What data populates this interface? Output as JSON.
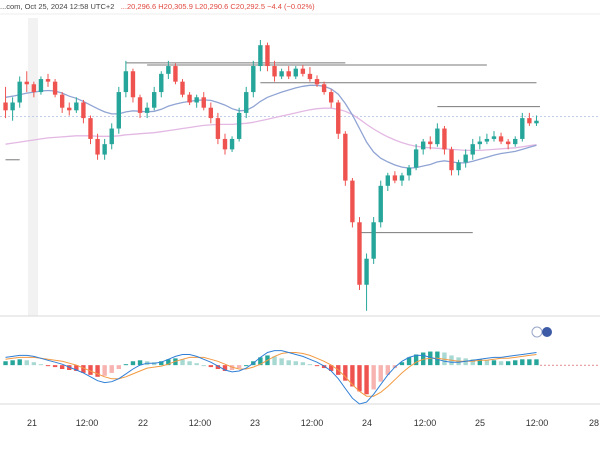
{
  "header": {
    "source": "...com, Oct 25, 2024 12:58 UTC+2",
    "ohlc": "...20,296.6  H20,305.9  L20,290.6  C20,292.5  −4.4 (−0.02%)"
  },
  "colors": {
    "up": "#26a69a",
    "down": "#ef5350",
    "ma_fast": "#90a4d4",
    "ma_slow": "#e3b8e3",
    "macd_line": "#2f7fd6",
    "signal_line": "#f39b43",
    "hist_up": "#26a69a",
    "hist_down": "#ef5350",
    "hist_up_light": "#a7d8d2",
    "hist_down_light": "#f6b3b0"
  },
  "x_axis": {
    "labels": [
      "21",
      "12:00",
      "22",
      "12:00",
      "23",
      "12:00",
      "24",
      "12:00",
      "25",
      "12:00",
      "28"
    ]
  },
  "chart_data": [
    {
      "type": "candlestick",
      "title": "",
      "xlabel": "",
      "ylabel": "",
      "ylim": [
        20000,
        20530
      ],
      "grid": false,
      "candles": [
        [
          20410,
          20440,
          20380,
          20395
        ],
        [
          20395,
          20420,
          20375,
          20410
        ],
        [
          20410,
          20460,
          20400,
          20450
        ],
        [
          20450,
          20470,
          20430,
          20445
        ],
        [
          20445,
          20450,
          20420,
          20430
        ],
        [
          20430,
          20460,
          20425,
          20455
        ],
        [
          20455,
          20465,
          20440,
          20450
        ],
        [
          20450,
          20455,
          20420,
          20425
        ],
        [
          20425,
          20430,
          20390,
          20400
        ],
        [
          20400,
          20410,
          20385,
          20395
        ],
        [
          20395,
          20420,
          20390,
          20410
        ],
        [
          20410,
          20415,
          20370,
          20380
        ],
        [
          20380,
          20385,
          20330,
          20340
        ],
        [
          20340,
          20350,
          20300,
          20310
        ],
        [
          20310,
          20340,
          20300,
          20330
        ],
        [
          20330,
          20370,
          20320,
          20360
        ],
        [
          20360,
          20440,
          20350,
          20430
        ],
        [
          20430,
          20490,
          20420,
          20470
        ],
        [
          20470,
          20475,
          20410,
          20420
        ],
        [
          20420,
          20425,
          20380,
          20390
        ],
        [
          20390,
          20410,
          20380,
          20400
        ],
        [
          20400,
          20440,
          20395,
          20430
        ],
        [
          20430,
          20470,
          20420,
          20465
        ],
        [
          20465,
          20490,
          20455,
          20480
        ],
        [
          20480,
          20485,
          20445,
          20450
        ],
        [
          20450,
          20455,
          20420,
          20425
        ],
        [
          20425,
          20430,
          20405,
          20410
        ],
        [
          20410,
          20425,
          20400,
          20420
        ],
        [
          20420,
          20430,
          20395,
          20400
        ],
        [
          20400,
          20410,
          20370,
          20380
        ],
        [
          20380,
          20390,
          20330,
          20340
        ],
        [
          20340,
          20350,
          20310,
          20320
        ],
        [
          20320,
          20345,
          20315,
          20340
        ],
        [
          20340,
          20400,
          20335,
          20390
        ],
        [
          20390,
          20440,
          20380,
          20430
        ],
        [
          20430,
          20490,
          20420,
          20480
        ],
        [
          20480,
          20530,
          20470,
          20520
        ],
        [
          20520,
          20525,
          20470,
          20480
        ],
        [
          20480,
          20490,
          20450,
          20460
        ],
        [
          20460,
          20475,
          20455,
          20470
        ],
        [
          20470,
          20480,
          20455,
          20460
        ],
        [
          20460,
          20480,
          20455,
          20475
        ],
        [
          20475,
          20482,
          20460,
          20465
        ],
        [
          20465,
          20478,
          20450,
          20455
        ],
        [
          20455,
          20462,
          20440,
          20445
        ],
        [
          20445,
          20450,
          20425,
          20430
        ],
        [
          20430,
          20435,
          20400,
          20410
        ],
        [
          20410,
          20415,
          20340,
          20350
        ],
        [
          20350,
          20355,
          20250,
          20260
        ],
        [
          20260,
          20265,
          20170,
          20180
        ],
        [
          20180,
          20190,
          20050,
          20060
        ],
        [
          20060,
          20120,
          20010,
          20110
        ],
        [
          20110,
          20190,
          20100,
          20180
        ],
        [
          20180,
          20260,
          20170,
          20250
        ],
        [
          20250,
          20275,
          20240,
          20270
        ],
        [
          20270,
          20278,
          20255,
          20260
        ],
        [
          20260,
          20275,
          20250,
          20270
        ],
        [
          20270,
          20290,
          20260,
          20285
        ],
        [
          20285,
          20330,
          20280,
          20320
        ],
        [
          20320,
          20340,
          20310,
          20335
        ],
        [
          20335,
          20345,
          20320,
          20330
        ],
        [
          20330,
          20370,
          20325,
          20360
        ],
        [
          20360,
          20365,
          20310,
          20320
        ],
        [
          20320,
          20325,
          20270,
          20280
        ],
        [
          20280,
          20300,
          20270,
          20295
        ],
        [
          20295,
          20320,
          20285,
          20310
        ],
        [
          20310,
          20340,
          20300,
          20330
        ],
        [
          20330,
          20345,
          20320,
          20335
        ],
        [
          20335,
          20350,
          20330,
          20340
        ],
        [
          20340,
          20355,
          20335,
          20345
        ],
        [
          20345,
          20352,
          20330,
          20335
        ],
        [
          20335,
          20340,
          20320,
          20330
        ],
        [
          20330,
          20345,
          20325,
          20340
        ],
        [
          20340,
          20390,
          20335,
          20380
        ],
        [
          20380,
          20390,
          20365,
          20370
        ],
        [
          20370,
          20385,
          20365,
          20375
        ]
      ],
      "ma_fast": [
        20420,
        20422,
        20425,
        20428,
        20430,
        20432,
        20433,
        20432,
        20428,
        20422,
        20418,
        20412,
        20405,
        20398,
        20392,
        20388,
        20388,
        20392,
        20394,
        20393,
        20392,
        20393,
        20397,
        20403,
        20407,
        20410,
        20412,
        20414,
        20415,
        20414,
        20410,
        20405,
        20398,
        20394,
        20395,
        20402,
        20412,
        20420,
        20425,
        20430,
        20434,
        20438,
        20441,
        20443,
        20443,
        20441,
        20436,
        20426,
        20408,
        20386,
        20360,
        20334,
        20315,
        20303,
        20296,
        20290,
        20286,
        20284,
        20285,
        20288,
        20291,
        20296,
        20298,
        20296,
        20294,
        20294,
        20297,
        20301,
        20305,
        20309,
        20312,
        20314,
        20316,
        20320,
        20324,
        20328
      ],
      "ma_slow": [
        20330,
        20332,
        20334,
        20336,
        20338,
        20340,
        20342,
        20343,
        20344,
        20345,
        20346,
        20346,
        20346,
        20345,
        20345,
        20345,
        20346,
        20348,
        20349,
        20350,
        20351,
        20352,
        20354,
        20356,
        20358,
        20360,
        20362,
        20364,
        20366,
        20367,
        20368,
        20368,
        20368,
        20369,
        20370,
        20372,
        20375,
        20378,
        20381,
        20384,
        20387,
        20390,
        20393,
        20396,
        20398,
        20399,
        20399,
        20397,
        20393,
        20387,
        20378,
        20368,
        20359,
        20351,
        20344,
        20338,
        20333,
        20329,
        20326,
        20324,
        20323,
        20322,
        20321,
        20320,
        20319,
        20318,
        20318,
        20318,
        20319,
        20320,
        20321,
        20322,
        20323,
        20325,
        20327,
        20329
      ]
    },
    {
      "type": "histogram",
      "title": "",
      "ylim": [
        -40,
        30
      ],
      "histogram": [
        4,
        5,
        6,
        5,
        3,
        1,
        -1,
        -2,
        -4,
        -5,
        -6,
        -8,
        -10,
        -12,
        -11,
        -8,
        -4,
        1,
        4,
        5,
        4,
        3,
        4,
        6,
        7,
        6,
        4,
        2,
        0,
        -2,
        -4,
        -6,
        -5,
        -3,
        0,
        4,
        8,
        10,
        9,
        7,
        5,
        4,
        3,
        1,
        -1,
        -3,
        -6,
        -10,
        -16,
        -22,
        -27,
        -30,
        -25,
        -17,
        -10,
        -3,
        3,
        8,
        11,
        13,
        14,
        14,
        13,
        10,
        8,
        7,
        6,
        6,
        5,
        5,
        4,
        4,
        5,
        6,
        6,
        6
      ],
      "macd": [
        8,
        9,
        10,
        10,
        9,
        7,
        5,
        3,
        1,
        -2,
        -5,
        -8,
        -12,
        -16,
        -18,
        -17,
        -14,
        -9,
        -4,
        0,
        2,
        2,
        3,
        6,
        9,
        11,
        11,
        9,
        6,
        3,
        -1,
        -5,
        -7,
        -6,
        -3,
        2,
        8,
        13,
        15,
        15,
        13,
        11,
        9,
        6,
        3,
        -1,
        -6,
        -14,
        -24,
        -34,
        -40,
        -38,
        -30,
        -20,
        -10,
        -2,
        4,
        8,
        10,
        10,
        8,
        6,
        4,
        3,
        3,
        4,
        5,
        6,
        7,
        8,
        8,
        9,
        10,
        11,
        12,
        13
      ],
      "signal": [
        6,
        7,
        8,
        8,
        8,
        7,
        6,
        5,
        4,
        2,
        0,
        -3,
        -6,
        -9,
        -12,
        -14,
        -14,
        -12,
        -9,
        -6,
        -3,
        -2,
        -1,
        1,
        4,
        6,
        8,
        8,
        8,
        6,
        4,
        1,
        -2,
        -4,
        -4,
        -2,
        1,
        5,
        9,
        12,
        13,
        13,
        12,
        10,
        7,
        4,
        0,
        -5,
        -12,
        -20,
        -27,
        -32,
        -32,
        -28,
        -22,
        -15,
        -8,
        -2,
        3,
        6,
        7,
        7,
        6,
        5,
        4,
        4,
        4,
        5,
        5,
        6,
        7,
        7,
        8,
        9,
        10,
        11
      ]
    }
  ]
}
